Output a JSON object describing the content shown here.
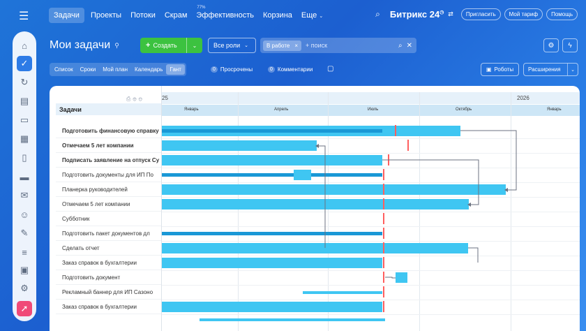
{
  "topnav": {
    "items": [
      {
        "label": "Задачи",
        "active": true
      },
      {
        "label": "Проекты"
      },
      {
        "label": "Потоки"
      },
      {
        "label": "Скрам"
      },
      {
        "label": "Эффективность",
        "badge": "77%"
      },
      {
        "label": "Корзина"
      },
      {
        "label": "Еще"
      }
    ],
    "brand": "Битрикс 24",
    "invite": "Пригласить",
    "tariff": "Мой тариф",
    "help": "Помощь"
  },
  "page": {
    "title": "Мои задачи",
    "create_label": "Создать",
    "roles_label": "Все роли",
    "filter_chip": "В работе",
    "search_placeholder": "+ поиск"
  },
  "views": {
    "tabs": [
      "Список",
      "Сроки",
      "Мой план",
      "Календарь",
      "Гант"
    ],
    "active": "Гант",
    "overdue_count": "0",
    "overdue_label": "Просрочены",
    "comments_count": "0",
    "comments_label": "Комментарии",
    "robots_label": "Роботы",
    "extensions_label": "Расширения"
  },
  "gantt": {
    "column_header": "Задачи",
    "years": [
      {
        "label": "25"
      },
      {
        "label": "2026"
      }
    ],
    "months": [
      "Январь",
      "Апрель",
      "Июль",
      "Октябрь",
      "Январь"
    ],
    "tasks": [
      {
        "label": "Подготовить финансовую справку",
        "bold": true
      },
      {
        "label": "Отмечаем 5 лет компании",
        "bold": true
      },
      {
        "label": "Подписать заявление на отпуск Су",
        "bold": true
      },
      {
        "label": "Подготовить документы для ИП По",
        "bold": false
      },
      {
        "label": "Планерка руководителей",
        "bold": false
      },
      {
        "label": "Отмечаем 5 лет компании",
        "bold": false
      },
      {
        "label": "Субботник",
        "bold": false
      },
      {
        "label": "Подготовить пакет документов дл",
        "bold": false
      },
      {
        "label": "Сделать отчет",
        "bold": false
      },
      {
        "label": "Заказ справок в бухгалтерии",
        "bold": false
      },
      {
        "label": "Подготовить документ",
        "bold": false
      },
      {
        "label": "Рекламный баннер для ИП Сазоно",
        "bold": false
      },
      {
        "label": "Заказ справок в бухгалтерии",
        "bold": false
      }
    ]
  },
  "colors": {
    "bar": "#3fc6f2",
    "progress": "#1a98d6",
    "deadline": "#ff5f5f",
    "create": "#3cc240",
    "accent": "#2d7be6"
  }
}
